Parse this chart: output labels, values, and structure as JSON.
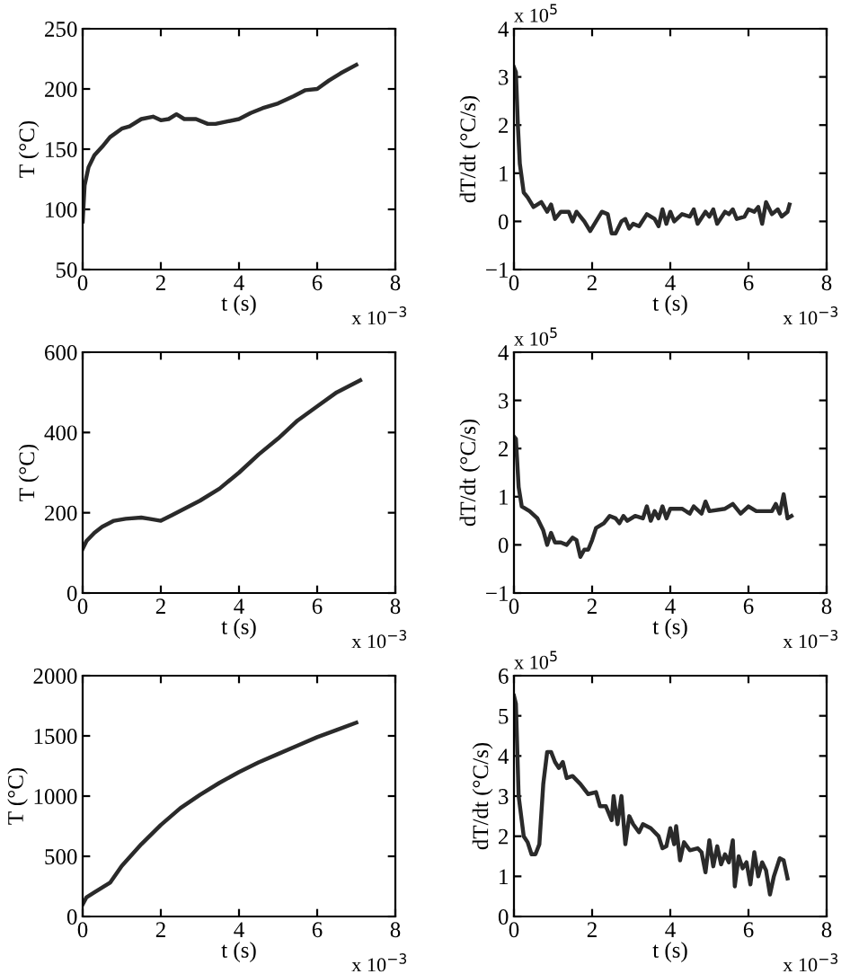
{
  "chart_data": [
    {
      "type": "line",
      "xlabel": "t (s)",
      "ylabel": "T (°C)",
      "xlim": [
        0,
        8
      ],
      "xticks": [
        0,
        2,
        4,
        6,
        8
      ],
      "ylim": [
        50,
        250
      ],
      "yticks": [
        50,
        100,
        150,
        200,
        250
      ],
      "grid": false,
      "annotations": [
        "x 10$^{−3}$"
      ],
      "series": [
        {
          "color": "#2a2a2a",
          "x": [
            0,
            0.05,
            0.15,
            0.3,
            0.5,
            0.7,
            1.0,
            1.2,
            1.5,
            1.8,
            2.0,
            2.2,
            2.4,
            2.6,
            2.9,
            3.2,
            3.4,
            3.7,
            4.0,
            4.3,
            4.6,
            5.0,
            5.4,
            5.7,
            6.0,
            6.3,
            6.6,
            7.0
          ],
          "values": [
            90,
            120,
            135,
            145,
            152,
            160,
            167,
            169,
            175,
            177,
            174,
            175,
            179,
            175,
            175,
            171,
            171,
            173,
            175,
            180,
            184,
            188,
            194,
            199,
            200,
            207,
            213,
            220
          ]
        }
      ]
    },
    {
      "type": "line",
      "xlabel": "t (s)",
      "ylabel": "dT/dt (°C/s)",
      "xlim": [
        0,
        8
      ],
      "xticks": [
        0,
        2,
        4,
        6,
        8
      ],
      "ylim": [
        -1,
        4
      ],
      "yticks": [
        {
          "value": -1,
          "label": "−1"
        },
        0,
        1,
        2,
        3,
        4
      ],
      "grid": false,
      "annotations": [
        "x 10$^{−3}$",
        "x 10$^{5}$"
      ],
      "series": [
        {
          "color": "#2a2a2a",
          "x": [
            0,
            0.05,
            0.1,
            0.15,
            0.25,
            0.35,
            0.5,
            0.6,
            0.7,
            0.85,
            0.95,
            1.05,
            1.2,
            1.4,
            1.5,
            1.6,
            1.8,
            1.95,
            2.1,
            2.25,
            2.4,
            2.5,
            2.6,
            2.75,
            2.85,
            2.95,
            3.05,
            3.2,
            3.4,
            3.6,
            3.7,
            3.8,
            3.9,
            4.0,
            4.1,
            4.3,
            4.5,
            4.6,
            4.7,
            4.9,
            5.0,
            5.1,
            5.2,
            5.4,
            5.5,
            5.6,
            5.7,
            5.9,
            6.0,
            6.15,
            6.25,
            6.35,
            6.45,
            6.6,
            6.75,
            6.85,
            7.0,
            7.05
          ],
          "values": [
            3.2,
            3.1,
            2.0,
            1.2,
            0.6,
            0.5,
            0.3,
            0.35,
            0.4,
            0.2,
            0.35,
            0.05,
            0.2,
            0.2,
            0.0,
            0.2,
            0.0,
            -0.2,
            0.0,
            0.2,
            0.15,
            -0.25,
            -0.25,
            0.0,
            0.05,
            -0.15,
            -0.05,
            -0.1,
            0.15,
            0.05,
            -0.1,
            0.25,
            -0.05,
            0.2,
            0.0,
            0.15,
            0.1,
            0.25,
            -0.05,
            0.2,
            0.1,
            0.25,
            -0.05,
            0.2,
            0.15,
            0.25,
            0.05,
            0.1,
            0.25,
            0.2,
            0.3,
            -0.05,
            0.4,
            0.15,
            0.25,
            0.1,
            0.2,
            0.35
          ]
        }
      ]
    },
    {
      "type": "line",
      "xlabel": "t (s)",
      "ylabel": "T (°C)",
      "xlim": [
        0,
        8
      ],
      "xticks": [
        0,
        2,
        4,
        6,
        8
      ],
      "ylim": [
        0,
        600
      ],
      "yticks": [
        0,
        200,
        400,
        600
      ],
      "grid": false,
      "annotations": [
        "x 10$^{−3}$"
      ],
      "series": [
        {
          "color": "#2a2a2a",
          "x": [
            0,
            0.1,
            0.3,
            0.5,
            0.8,
            1.1,
            1.5,
            1.7,
            2.0,
            2.3,
            2.7,
            3.0,
            3.5,
            4.0,
            4.5,
            5.0,
            5.5,
            6.0,
            6.5,
            7.1
          ],
          "values": [
            110,
            130,
            150,
            165,
            180,
            185,
            188,
            185,
            180,
            195,
            215,
            230,
            260,
            300,
            345,
            385,
            430,
            465,
            500,
            530
          ]
        }
      ]
    },
    {
      "type": "line",
      "xlabel": "t (s)",
      "ylabel": "dT/dt (°C/s)",
      "xlim": [
        0,
        8
      ],
      "xticks": [
        0,
        2,
        4,
        6,
        8
      ],
      "ylim": [
        -1,
        4
      ],
      "yticks": [
        {
          "value": -1,
          "label": "−1"
        },
        0,
        1,
        2,
        3,
        4
      ],
      "grid": false,
      "annotations": [
        "x 10$^{−3}$",
        "x 10$^{5}$"
      ],
      "series": [
        {
          "color": "#2a2a2a",
          "x": [
            0,
            0.05,
            0.12,
            0.2,
            0.4,
            0.6,
            0.75,
            0.85,
            0.95,
            1.05,
            1.2,
            1.35,
            1.5,
            1.6,
            1.7,
            1.8,
            1.9,
            2.0,
            2.1,
            2.3,
            2.45,
            2.6,
            2.7,
            2.8,
            2.9,
            3.1,
            3.3,
            3.4,
            3.5,
            3.6,
            3.7,
            3.8,
            3.9,
            4.0,
            4.3,
            4.5,
            4.6,
            4.8,
            4.9,
            5.0,
            5.4,
            5.6,
            5.8,
            6.0,
            6.2,
            6.6,
            6.7,
            6.8,
            6.9,
            7.0,
            7.1
          ],
          "values": [
            2.25,
            2.2,
            1.2,
            0.8,
            0.7,
            0.55,
            0.3,
            0.0,
            0.25,
            0.05,
            0.05,
            0.0,
            0.15,
            0.1,
            -0.25,
            -0.1,
            -0.1,
            0.1,
            0.35,
            0.45,
            0.6,
            0.55,
            0.45,
            0.6,
            0.5,
            0.6,
            0.55,
            0.8,
            0.5,
            0.7,
            0.55,
            0.8,
            0.55,
            0.75,
            0.75,
            0.65,
            0.8,
            0.65,
            0.9,
            0.7,
            0.75,
            0.85,
            0.65,
            0.8,
            0.7,
            0.7,
            0.85,
            0.65,
            1.05,
            0.55,
            0.6
          ]
        }
      ]
    },
    {
      "type": "line",
      "xlabel": "t (s)",
      "ylabel": "T (°C)",
      "xlim": [
        0,
        8
      ],
      "xticks": [
        0,
        2,
        4,
        6,
        8
      ],
      "ylim": [
        0,
        2000
      ],
      "yticks": [
        0,
        500,
        1000,
        1500,
        2000
      ],
      "grid": false,
      "annotations": [
        "x 10$^{−3}$"
      ],
      "series": [
        {
          "color": "#2a2a2a",
          "x": [
            0,
            0.1,
            0.3,
            0.7,
            1.0,
            1.5,
            2.0,
            2.5,
            3.0,
            3.5,
            4.0,
            4.5,
            5.0,
            5.5,
            6.0,
            6.5,
            7.0
          ],
          "values": [
            100,
            160,
            200,
            280,
            420,
            600,
            760,
            900,
            1010,
            1110,
            1200,
            1280,
            1350,
            1420,
            1490,
            1550,
            1610
          ]
        }
      ]
    },
    {
      "type": "line",
      "xlabel": "t (s)",
      "ylabel": "dT/dt (°C/s)",
      "xlim": [
        0,
        8
      ],
      "xticks": [
        0,
        2,
        4,
        6,
        8
      ],
      "ylim": [
        0,
        6
      ],
      "yticks": [
        0,
        1,
        2,
        3,
        4,
        5,
        6
      ],
      "grid": false,
      "annotations": [
        "x 10$^{−3}$",
        "x 10$^{5}$"
      ],
      "series": [
        {
          "color": "#2a2a2a",
          "x": [
            0,
            0.05,
            0.12,
            0.25,
            0.35,
            0.45,
            0.55,
            0.65,
            0.75,
            0.85,
            0.95,
            1.05,
            1.15,
            1.25,
            1.35,
            1.5,
            1.7,
            1.9,
            2.1,
            2.2,
            2.35,
            2.5,
            2.55,
            2.65,
            2.75,
            2.85,
            2.95,
            3.05,
            3.2,
            3.3,
            3.5,
            3.7,
            3.8,
            3.9,
            4.0,
            4.1,
            4.15,
            4.25,
            4.35,
            4.5,
            4.7,
            4.8,
            4.9,
            5.0,
            5.1,
            5.2,
            5.3,
            5.4,
            5.5,
            5.6,
            5.65,
            5.75,
            5.85,
            5.95,
            6.05,
            6.15,
            6.25,
            6.35,
            6.45,
            6.55,
            6.65,
            6.8,
            6.9,
            7.0
          ],
          "values": [
            5.5,
            5.3,
            3.0,
            2.0,
            1.85,
            1.55,
            1.55,
            1.8,
            3.3,
            4.1,
            4.1,
            3.85,
            3.7,
            3.85,
            3.45,
            3.5,
            3.3,
            3.05,
            3.1,
            2.75,
            2.75,
            2.4,
            3.0,
            2.3,
            3.0,
            1.8,
            2.5,
            2.3,
            2.1,
            2.3,
            2.2,
            2.0,
            1.7,
            1.75,
            2.2,
            1.8,
            2.25,
            1.4,
            1.85,
            1.65,
            1.7,
            1.6,
            1.1,
            1.9,
            1.25,
            1.75,
            1.3,
            1.55,
            1.35,
            1.9,
            0.75,
            1.5,
            1.2,
            1.35,
            0.8,
            1.6,
            1.0,
            1.35,
            1.15,
            0.55,
            1.0,
            1.45,
            1.4,
            0.95
          ]
        }
      ]
    }
  ]
}
